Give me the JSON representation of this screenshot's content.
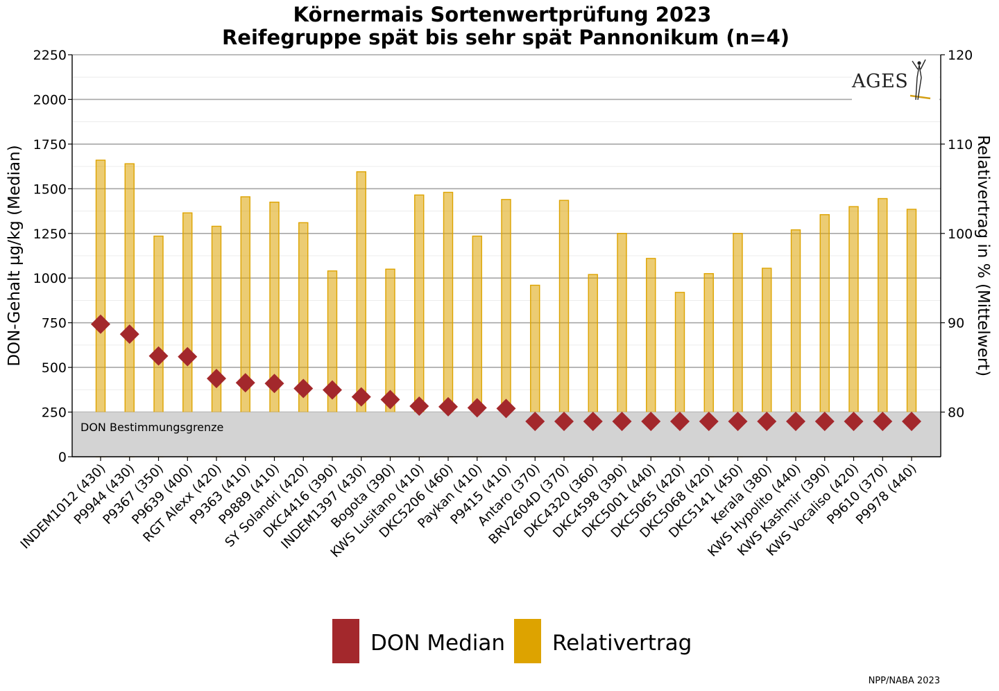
{
  "chart_data": {
    "type": "bar",
    "title": [
      "Körnermais Sortenwertprüfung 2023",
      "Reifegruppe spät bis sehr spät Pannonikum (n=4)"
    ],
    "categories": [
      "INDEM1012 (430)",
      "P9944 (430)",
      "P9367 (350)",
      "P9639 (400)",
      "RGT Alexx (420)",
      "P9363 (410)",
      "P9889 (410)",
      "SY Solandri (420)",
      "DKC4416 (390)",
      "INDEM1397 (430)",
      "Bogota (390)",
      "KWS Lusitano (410)",
      "DKC5206 (460)",
      "Paykan (410)",
      "P9415 (410)",
      "Antaro (370)",
      "BRV2604D (370)",
      "DKC4320 (360)",
      "DKC4598 (390)",
      "DKC5001 (440)",
      "DKC5065 (420)",
      "DKC5068 (420)",
      "DKC5141 (450)",
      "Kerala (380)",
      "KWS Hypolito (440)",
      "KWS Kashmir (390)",
      "KWS Vocaliso (420)",
      "P9610 (370)",
      "P9978 (440)"
    ],
    "series": [
      {
        "name": "DON Median",
        "axis": "left",
        "marker": "diamond",
        "color": "#a3282c",
        "values": [
          742,
          686,
          564,
          560,
          438,
          414,
          410,
          382,
          374,
          335,
          320,
          283,
          280,
          274,
          270,
          198,
          198,
          198,
          198,
          198,
          198,
          198,
          198,
          198,
          198,
          198,
          198,
          198,
          198
        ]
      },
      {
        "name": "Relativertrag",
        "axis": "right",
        "marker": "bar",
        "color": "#dda300",
        "values": [
          108.2,
          107.8,
          99.7,
          102.3,
          100.8,
          104.1,
          103.5,
          101.2,
          95.8,
          106.9,
          96.0,
          104.3,
          104.6,
          99.7,
          103.8,
          94.2,
          103.7,
          95.4,
          100.0,
          97.2,
          93.4,
          95.5,
          100.0,
          96.1,
          100.4,
          102.1,
          103.0,
          103.9,
          102.7
        ]
      }
    ],
    "ylabel": "DON-Gehalt µg/kg (Median)",
    "y2label": "Relativertrag in % (Mittelwert)",
    "ylim": [
      0,
      2250
    ],
    "y2lim": [
      75,
      120
    ],
    "yticks": [
      0,
      250,
      500,
      750,
      1000,
      1250,
      1500,
      1750,
      2000,
      2250
    ],
    "y2ticks": [
      80,
      90,
      100,
      110,
      120
    ],
    "detection_limit": {
      "value": 250,
      "label": "DON Bestimmungsgrenze",
      "color": "#d3d3d3"
    },
    "grid": true,
    "legend_position": "bottom-center"
  },
  "legend": {
    "items": [
      {
        "label": "DON Median",
        "color": "#a3282c"
      },
      {
        "label": "Relativertrag",
        "color": "#dda300"
      }
    ]
  },
  "logo": {
    "text": "AGES"
  },
  "credit": "NPP/NABA 2023"
}
